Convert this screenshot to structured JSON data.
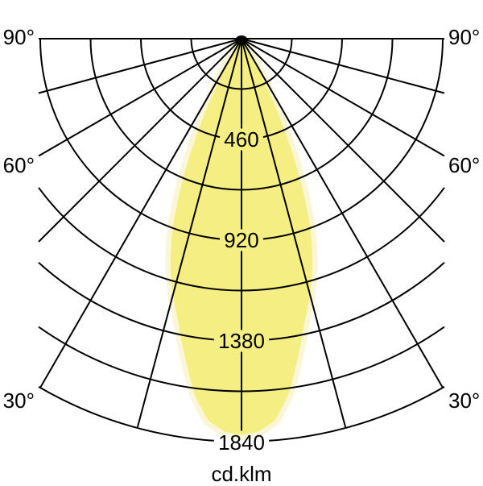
{
  "chart": {
    "angle_labels": {
      "left": [
        "90°",
        "60°",
        "30°"
      ],
      "right": [
        "90°",
        "60°",
        "30°"
      ]
    },
    "ring_labels": [
      "460",
      "920",
      "1380",
      "1840"
    ],
    "unit_label": "cd.klm"
  },
  "chart_data": {
    "type": "area",
    "polar": true,
    "orientation": "beam-downward",
    "unit": "cd.klm",
    "angle_range_deg": [
      -90,
      90
    ],
    "angle_grid_step_deg": 15,
    "angle_tick_labels": [
      "30°",
      "60°",
      "90°"
    ],
    "ring_step": 230,
    "ring_values": [
      230,
      460,
      690,
      920,
      1150,
      1380,
      1610,
      1840
    ],
    "labeled_ring_values": [
      460,
      920,
      1380,
      1840
    ],
    "rlim": [
      0,
      1840
    ],
    "grid": true,
    "series": [
      {
        "name": "luminous-intensity",
        "symmetric": true,
        "angles_deg": [
          0,
          2.5,
          5,
          7.5,
          10,
          12.5,
          15,
          17.5,
          20,
          22.5,
          25,
          27.5,
          30,
          32.5
        ],
        "values_cd_klm": [
          1810,
          1795,
          1750,
          1640,
          1480,
          1330,
          1210,
          1080,
          920,
          710,
          480,
          270,
          110,
          0
        ]
      }
    ],
    "colors": {
      "beam_fill": "#F5EE82",
      "beam_halo": "#FAF7D8",
      "grid_line": "#000000",
      "text": "#000000",
      "background": "#FFFFFF"
    }
  }
}
